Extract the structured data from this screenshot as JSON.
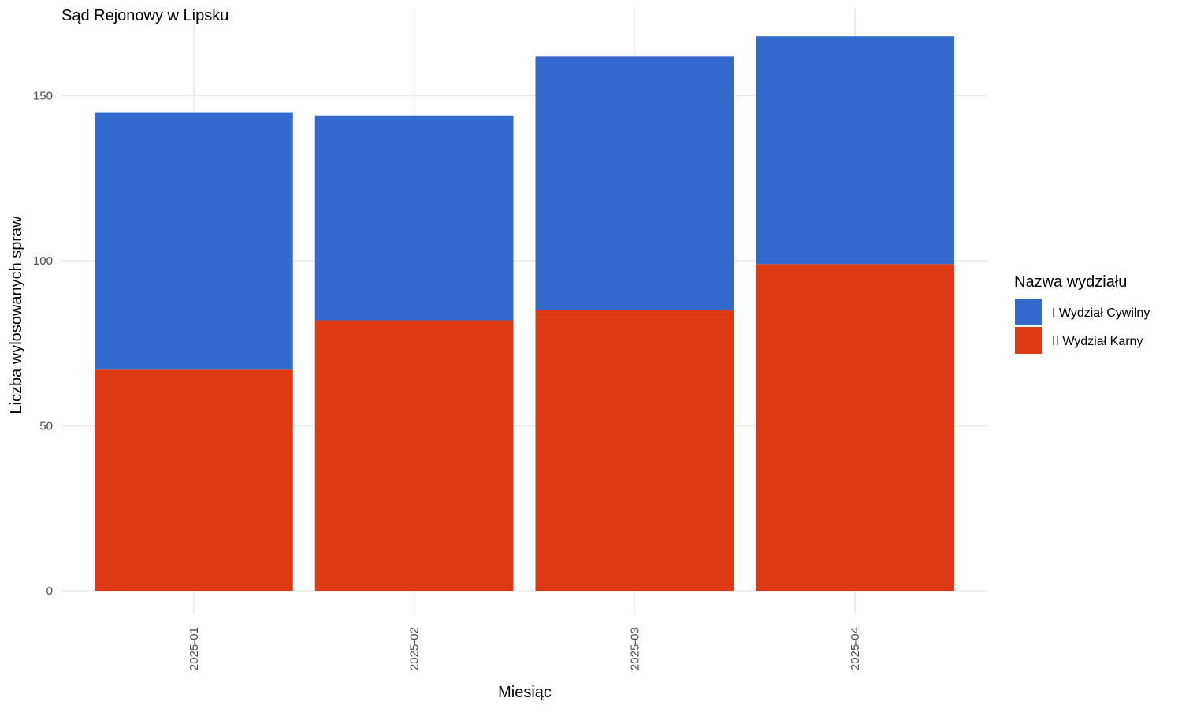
{
  "chart_data": {
    "type": "bar",
    "stacked": true,
    "title": "Sąd Rejonowy w Lipsku",
    "xlabel": "Miesiąc",
    "ylabel": "Liczba wylosowanych spraw",
    "categories": [
      "2025-01",
      "2025-02",
      "2025-03",
      "2025-04"
    ],
    "series": [
      {
        "name": "II Wydział Karny",
        "color": "#dd3912",
        "values": [
          67,
          82,
          85,
          99
        ]
      },
      {
        "name": "I Wydział Cywilny",
        "color": "#3369cc",
        "values": [
          78,
          62,
          77,
          69
        ]
      }
    ],
    "ylim": [
      0,
      168
    ],
    "yticks": [
      0,
      50,
      100,
      150
    ],
    "grid": true,
    "legend": {
      "title": "Nazwa wydziału",
      "position": "right",
      "items": [
        {
          "label": "I Wydział Cywilny",
          "color": "#3369cc"
        },
        {
          "label": "II Wydział Karny",
          "color": "#dd3912"
        }
      ]
    }
  }
}
